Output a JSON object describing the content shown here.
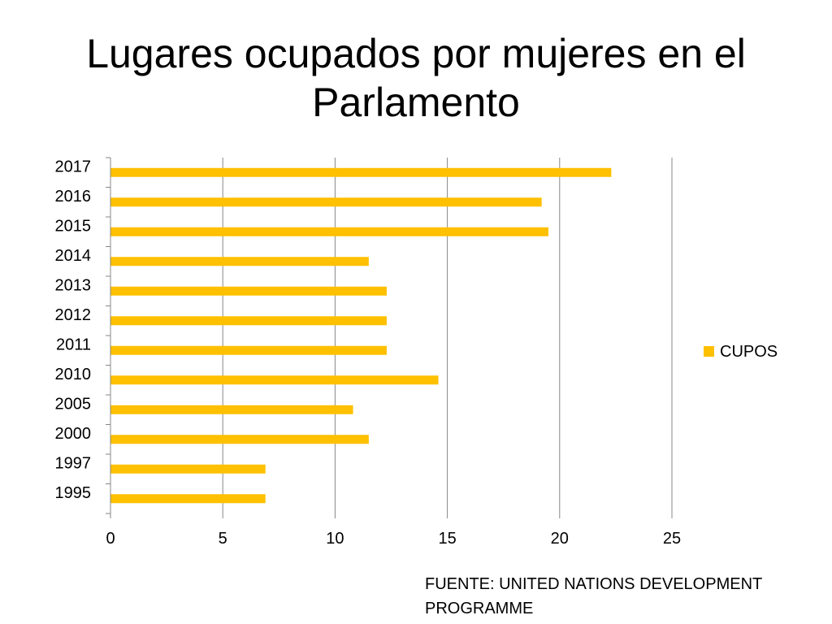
{
  "slide": {
    "title": "Lugares ocupados por mujeres en el Parlamento",
    "source": "FUENTE: UNITED NATIONS DEVELOPMENT PROGRAMME"
  },
  "chart_data": {
    "type": "bar",
    "orientation": "horizontal",
    "categories": [
      "1995",
      "1997",
      "2000",
      "2005",
      "2010",
      "2011",
      "2012",
      "2013",
      "2014",
      "2015",
      "2016",
      "2017"
    ],
    "series": [
      {
        "name": "CUPOS",
        "color": "#FFC000",
        "values": [
          6.9,
          6.9,
          11.5,
          10.8,
          14.6,
          12.3,
          12.3,
          12.3,
          11.5,
          19.5,
          19.2,
          22.3
        ]
      }
    ],
    "xlim": [
      0,
      25
    ],
    "xticks": [
      0,
      5,
      10,
      15,
      20,
      25
    ],
    "xlabel": "",
    "ylabel": "",
    "grid": "vertical",
    "legend": "right"
  }
}
